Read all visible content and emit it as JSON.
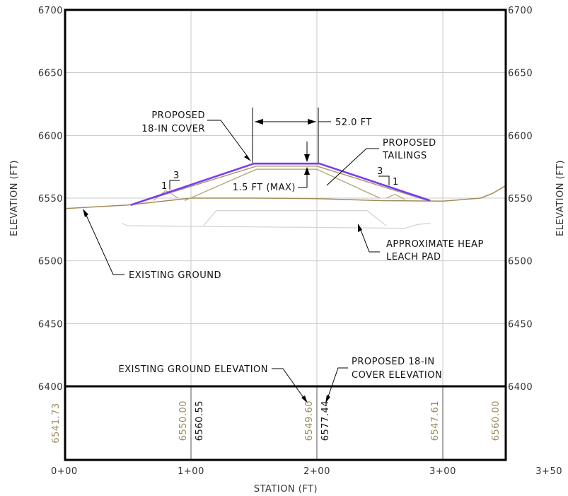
{
  "axes": {
    "x_title": "STATION (FT)",
    "y_title_left": "ELEVATION (FT)",
    "y_title_right": "ELEVATION (FT)",
    "x_ticks": [
      {
        "value": 0,
        "label": "0+00"
      },
      {
        "value": 100,
        "label": "1+00"
      },
      {
        "value": 200,
        "label": "2+00"
      },
      {
        "value": 300,
        "label": "3+00"
      },
      {
        "value": 350,
        "label": "3+50"
      }
    ],
    "y_ticks": [
      6400,
      6450,
      6500,
      6550,
      6600,
      6650,
      6700
    ],
    "x_range": [
      0,
      350
    ],
    "y_range": [
      6400,
      6700
    ]
  },
  "labels": {
    "proposed_cover": [
      "PROPOSED",
      "18-IN COVER"
    ],
    "width": "52.0 FT",
    "proposed_tailings": [
      "PROPOSED",
      "TAILINGS"
    ],
    "slope_left_run": "3",
    "slope_left_rise": "1",
    "slope_right_run": "3",
    "slope_right_rise": "1",
    "max_thickness": "1.5 FT (MAX)",
    "existing_ground": "EXISTING GROUND",
    "heap_leach": [
      "APPROXIMATE HEAP",
      "LEACH PAD"
    ],
    "existing_ground_elev": "EXISTING GROUND ELEVATION",
    "proposed_cover_elev": [
      "PROPOSED 18-IN",
      "COVER ELEVATION"
    ]
  },
  "elevation_table": [
    {
      "station": 0,
      "value": "6541.73",
      "kind": "existing"
    },
    {
      "station": 100,
      "value": "6550.00",
      "kind": "existing"
    },
    {
      "station": 100,
      "value": "6560.55",
      "kind": "cover"
    },
    {
      "station": 200,
      "value": "6549.60",
      "kind": "existing"
    },
    {
      "station": 200,
      "value": "6577.44",
      "kind": "cover"
    },
    {
      "station": 300,
      "value": "6547.61",
      "kind": "existing"
    },
    {
      "station": 350,
      "value": "6560.00",
      "kind": "existing"
    }
  ],
  "profiles": {
    "existing_ground": [
      [
        0,
        6541.7
      ],
      [
        50,
        6544.5
      ],
      [
        100,
        6550
      ],
      [
        150,
        6550
      ],
      [
        200,
        6549.6
      ],
      [
        250,
        6548
      ],
      [
        300,
        6547.6
      ],
      [
        330,
        6550
      ],
      [
        340,
        6554
      ],
      [
        350,
        6560
      ]
    ],
    "proposed_cover": [
      [
        52,
        6544.5
      ],
      [
        150,
        6577.5
      ],
      [
        202,
        6577.5
      ],
      [
        290,
        6548
      ]
    ],
    "tailings_outer": [
      [
        52,
        6544.5
      ],
      [
        152,
        6575.5
      ],
      [
        200,
        6575.5
      ],
      [
        288,
        6548
      ]
    ],
    "tailings_inner": [
      [
        95,
        6548
      ],
      [
        152,
        6573
      ],
      [
        200,
        6573
      ],
      [
        250,
        6550
      ]
    ],
    "bench_left": [
      [
        70,
        6548
      ],
      [
        80,
        6556
      ],
      [
        90,
        6550
      ]
    ],
    "bench_right": [
      [
        255,
        6550
      ],
      [
        262,
        6553
      ],
      [
        270,
        6549
      ]
    ],
    "heap_top": [
      [
        110,
        6528
      ],
      [
        120,
        6540
      ],
      [
        240,
        6540
      ],
      [
        255,
        6528
      ]
    ],
    "heap_base": [
      [
        45,
        6530
      ],
      [
        50,
        6528
      ],
      [
        270,
        6526
      ],
      [
        280,
        6529
      ],
      [
        290,
        6530
      ]
    ]
  }
}
